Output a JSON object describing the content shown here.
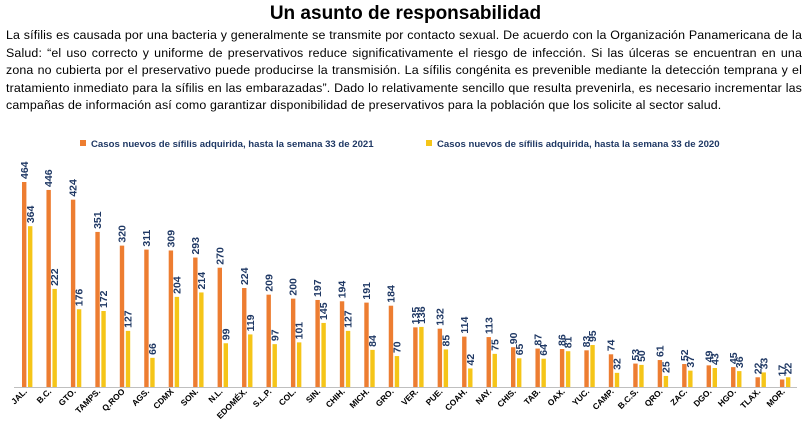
{
  "title": "Un asunto de responsabilidad",
  "paragraph": "La sífilis es causada por una bacteria y generalmente se transmite por contacto sexual. De acuerdo con la Organización Panamericana de la Salud: “el uso correcto y uniforme de preservativos reduce significativamente el riesgo de infección. Si las úlceras se encuentran en una zona no cubierta por el preservativo puede producirse la transmisión. La sífilis congénita es prevenible mediante la detección temprana y el tratamiento inmediato para la sífilis en las embarazadas”. Dado lo relativamente sencillo que resulta prevenirla, es necesario incrementar las campañas de información así como garantizar disponibilidad de preservativos para la población que los solicite al sector salud.",
  "chart_data": {
    "type": "bar",
    "categories": [
      "JAL.",
      "B.C.",
      "GTO.",
      "TAMPS.",
      "Q.ROO",
      "AGS.",
      "CDMX",
      "SON.",
      "N.L.",
      "EDOMÉX.",
      "S.L.P.",
      "COL.",
      "SIN.",
      "CHIH.",
      "MICH.",
      "GRO.",
      "VER.",
      "PUE.",
      "COAH.",
      "NAY.",
      "CHIS.",
      "TAB.",
      "OAX.",
      "YUC.",
      "CAMP.",
      "B.C.S.",
      "QRO.",
      "ZAC.",
      "DGO.",
      "HGO.",
      "TLAX.",
      "MOR."
    ],
    "series": [
      {
        "name": "Casos nuevos de sífilis adquirida, hasta la semana 33 de 2021",
        "color": "#ed7d31",
        "values": [
          464,
          446,
          424,
          351,
          320,
          311,
          309,
          293,
          270,
          224,
          209,
          200,
          197,
          194,
          191,
          184,
          135,
          132,
          114,
          113,
          90,
          87,
          86,
          83,
          74,
          53,
          61,
          52,
          49,
          45,
          22,
          17
        ]
      },
      {
        "name": "Casos nuevos de sífilis adquirida, hasta la semana 33 de 2020",
        "color": "#f5c518",
        "values": [
          364,
          222,
          176,
          172,
          127,
          66,
          204,
          214,
          99,
          119,
          97,
          101,
          145,
          127,
          84,
          70,
          136,
          85,
          42,
          75,
          65,
          64,
          81,
          95,
          32,
          50,
          25,
          37,
          43,
          36,
          33,
          22
        ]
      }
    ],
    "ylim": [
      0,
      464
    ],
    "grid": false,
    "legend_position": "top"
  }
}
